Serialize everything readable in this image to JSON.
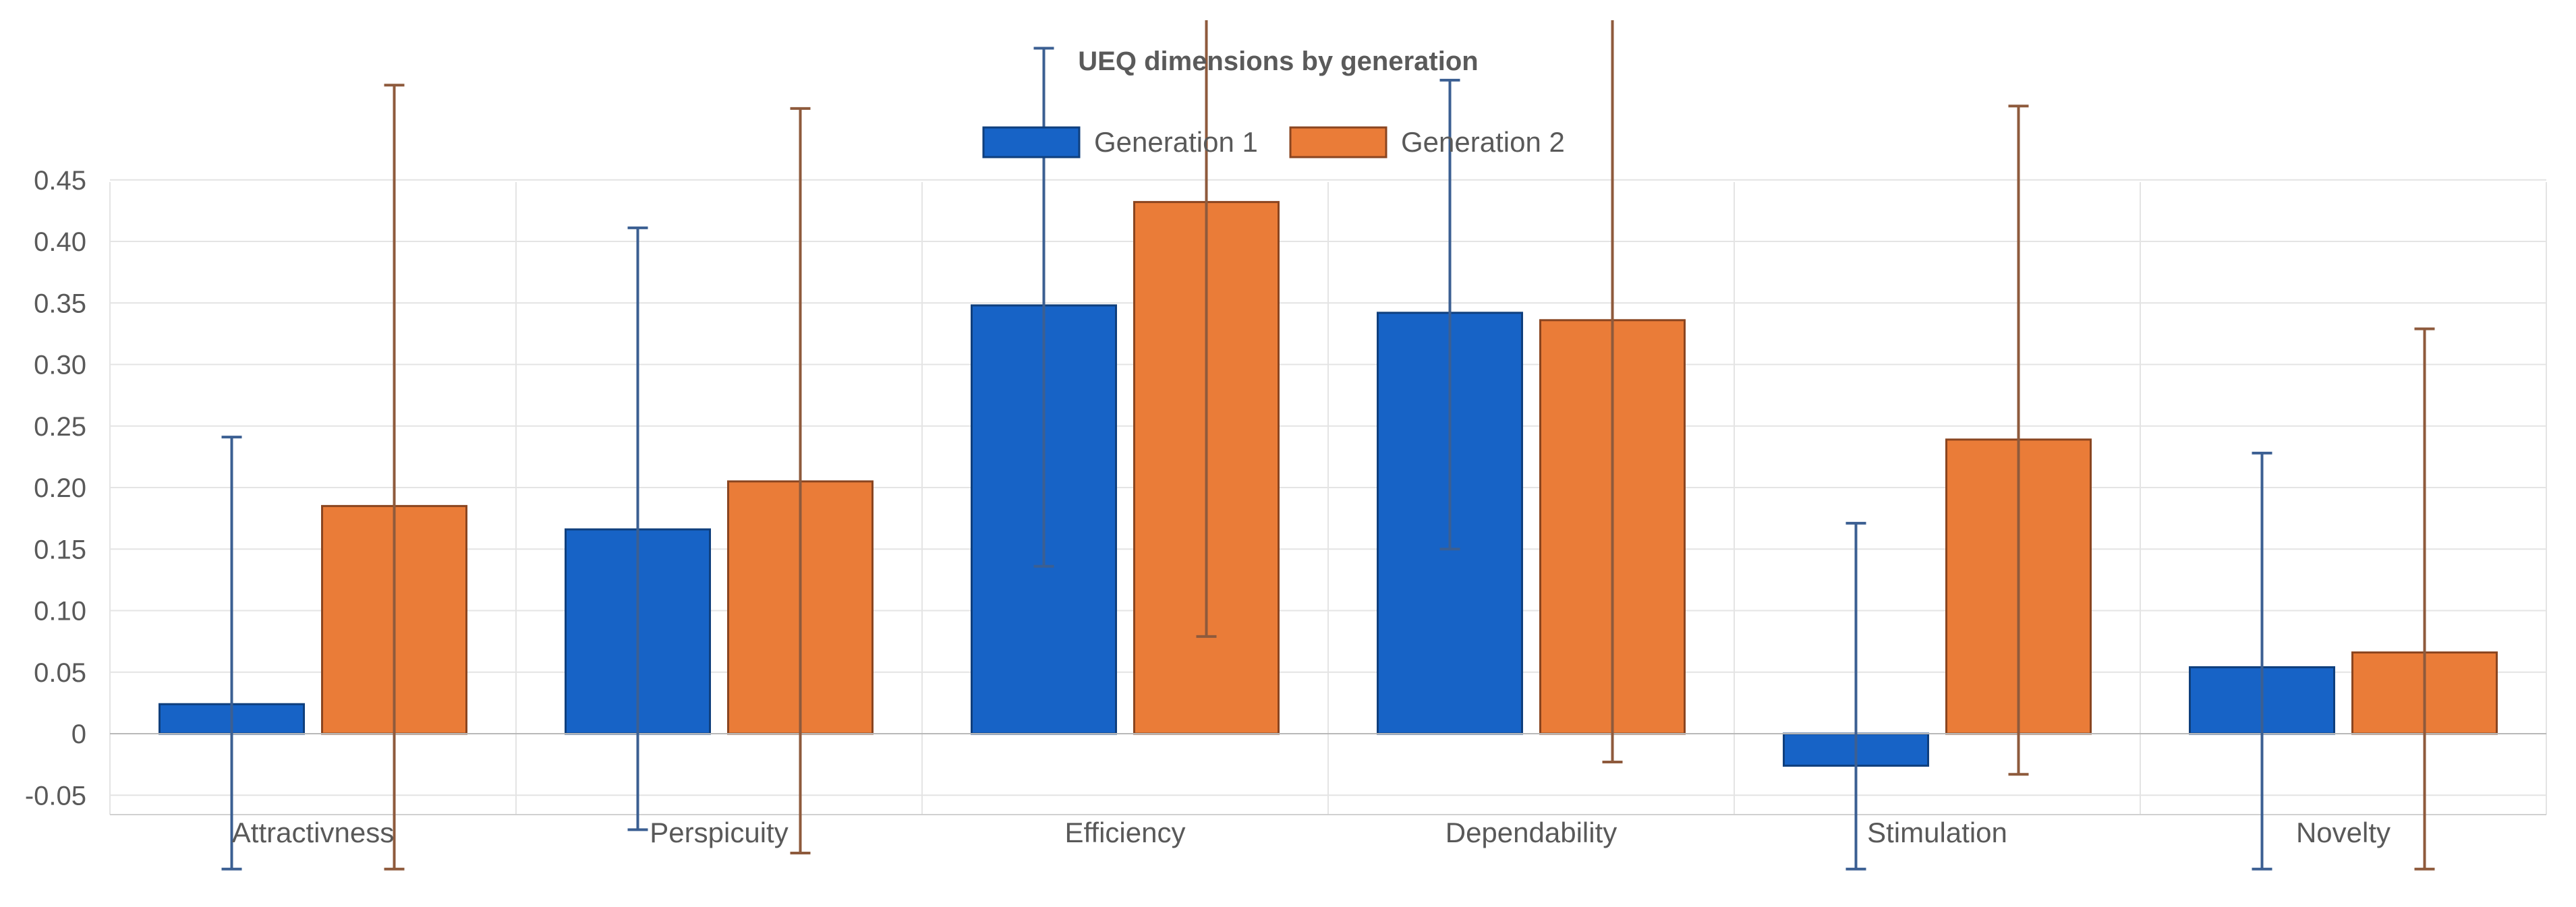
{
  "chart_data": {
    "type": "bar",
    "title": "UEQ dimensions by generation",
    "categories": [
      "Attractivness",
      "Perspicuity",
      "Efficiency",
      "Dependability",
      "Stimulation",
      "Novelty"
    ],
    "series": [
      {
        "name": "Generation 1",
        "color": "#1763c6",
        "edge_color": "#0f3f7d",
        "values": [
          0.024,
          0.166,
          0.348,
          0.342,
          -0.026,
          0.054
        ],
        "error_low": [
          -0.11,
          -0.078,
          0.136,
          0.15,
          -0.11,
          -0.11
        ],
        "error_high": [
          0.241,
          0.411,
          0.557,
          0.531,
          0.171,
          0.228
        ]
      },
      {
        "name": "Generation 2",
        "color": "#ea7c38",
        "edge_color": "#8a4520",
        "values": [
          0.185,
          0.205,
          0.432,
          0.336,
          0.239,
          0.066
        ],
        "error_low": [
          -0.11,
          -0.097,
          0.079,
          -0.023,
          -0.033,
          -0.11
        ],
        "error_high": [
          0.527,
          0.508,
          0.6,
          0.6,
          0.51,
          0.329
        ]
      }
    ],
    "ylim": [
      -0.07,
      0.45
    ],
    "yticks": [
      -0.05,
      0,
      0.05,
      0.1,
      0.15,
      0.2,
      0.25,
      0.3,
      0.35,
      0.4,
      0.45
    ],
    "ytick_labels": [
      "-0.05",
      "0",
      "0.05",
      "0.10",
      "0.15",
      "0.20",
      "0.25",
      "0.30",
      "0.35",
      "0.40",
      "0.45"
    ],
    "xlabel": "",
    "ylabel": "",
    "legend_position": "top-center",
    "grid": true
  }
}
